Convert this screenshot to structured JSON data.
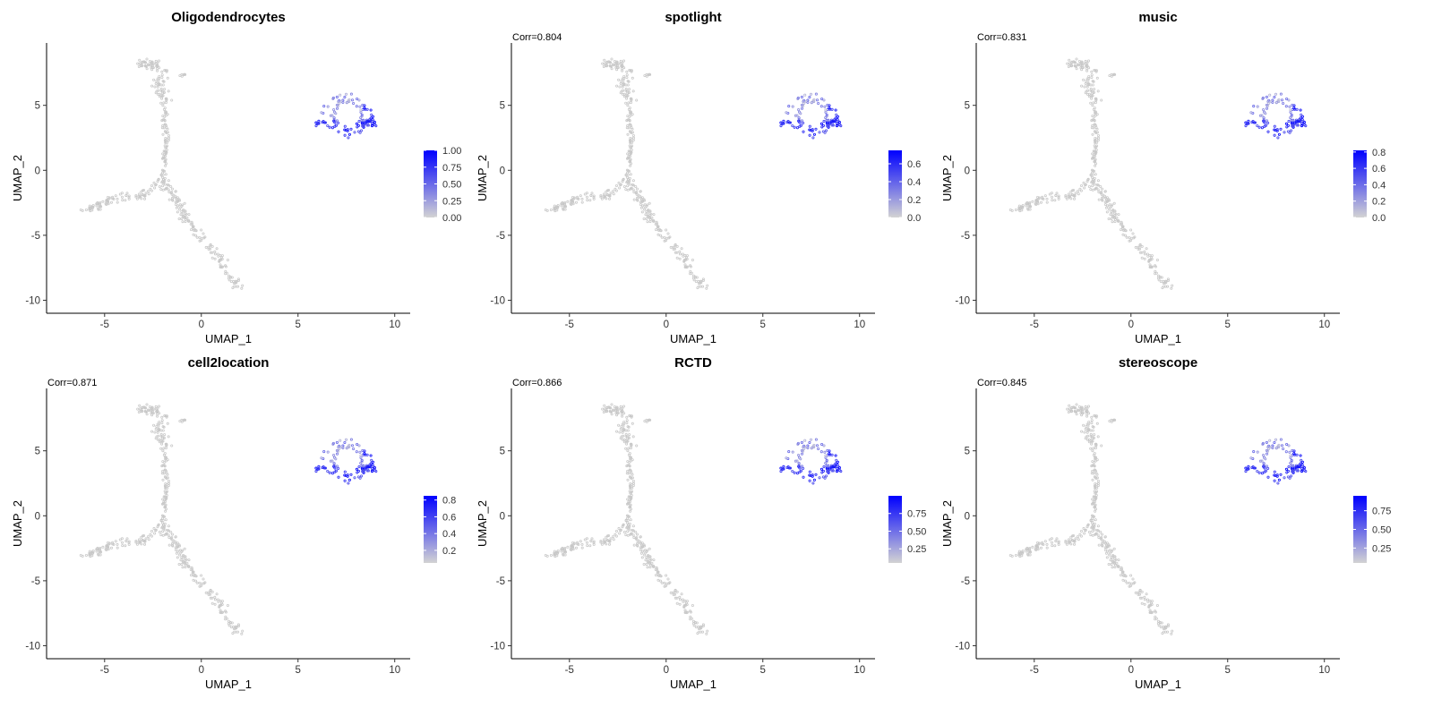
{
  "figure": {
    "layout": "2 rows x 3 columns of UMAP feature plots"
  },
  "chart_data": [
    {
      "type": "scatter",
      "title": "Oligodendrocytes",
      "annotation": "",
      "xlabel": "UMAP_1",
      "ylabel": "UMAP_2",
      "xlim": [
        -8,
        10.8
      ],
      "ylim": [
        -11,
        9.8
      ],
      "x_ticks": [
        "-5",
        "0",
        "5",
        "10"
      ],
      "y_ticks": [
        "-10",
        "-5",
        "0",
        "5"
      ],
      "x_tick_values": [
        -5,
        0,
        5,
        10
      ],
      "y_tick_values": [
        -10,
        -5,
        0,
        5
      ],
      "grid": false,
      "legend_position": "right",
      "color_low": "#d3d3d3",
      "color_high": "#0000ff",
      "legend_range": [
        0,
        1.0
      ],
      "legend_ticks": [
        "0.00",
        "0.25",
        "0.50",
        "0.75",
        "1.00"
      ],
      "legend_tick_values": [
        0,
        0.25,
        0.5,
        0.75,
        1.0
      ]
    },
    {
      "type": "scatter",
      "title": "spotlight",
      "annotation": "Corr=0.804",
      "xlabel": "UMAP_1",
      "ylabel": "UMAP_2",
      "xlim": [
        -8,
        10.8
      ],
      "ylim": [
        -11,
        9.8
      ],
      "x_ticks": [
        "-5",
        "0",
        "5",
        "10"
      ],
      "y_ticks": [
        "-10",
        "-5",
        "0",
        "5"
      ],
      "x_tick_values": [
        -5,
        0,
        5,
        10
      ],
      "y_tick_values": [
        -10,
        -5,
        0,
        5
      ],
      "grid": false,
      "legend_position": "right",
      "color_low": "#d3d3d3",
      "color_high": "#0000ff",
      "legend_range": [
        0,
        0.75
      ],
      "legend_ticks": [
        "0.0",
        "0.2",
        "0.4",
        "0.6"
      ],
      "legend_tick_values": [
        0,
        0.2,
        0.4,
        0.6
      ]
    },
    {
      "type": "scatter",
      "title": "music",
      "annotation": "Corr=0.831",
      "xlabel": "UMAP_1",
      "ylabel": "UMAP_2",
      "xlim": [
        -8,
        10.8
      ],
      "ylim": [
        -11,
        9.8
      ],
      "x_ticks": [
        "-5",
        "0",
        "5",
        "10"
      ],
      "y_ticks": [
        "-10",
        "-5",
        "0",
        "5"
      ],
      "x_tick_values": [
        -5,
        0,
        5,
        10
      ],
      "y_tick_values": [
        -10,
        -5,
        0,
        5
      ],
      "grid": false,
      "legend_position": "right",
      "color_low": "#d3d3d3",
      "color_high": "#0000ff",
      "legend_range": [
        0,
        0.82
      ],
      "legend_ticks": [
        "0.0",
        "0.2",
        "0.4",
        "0.6",
        "0.8"
      ],
      "legend_tick_values": [
        0,
        0.2,
        0.4,
        0.6,
        0.8
      ]
    },
    {
      "type": "scatter",
      "title": "cell2location",
      "annotation": "Corr=0.871",
      "xlabel": "UMAP_1",
      "ylabel": "UMAP_2",
      "xlim": [
        -8,
        10.8
      ],
      "ylim": [
        -11,
        9.8
      ],
      "x_ticks": [
        "-5",
        "0",
        "5",
        "10"
      ],
      "y_ticks": [
        "-10",
        "-5",
        "0",
        "5"
      ],
      "x_tick_values": [
        -5,
        0,
        5,
        10
      ],
      "y_tick_values": [
        -10,
        -5,
        0,
        5
      ],
      "grid": false,
      "legend_position": "right",
      "color_low": "#d3d3d3",
      "color_high": "#0000ff",
      "legend_range": [
        0.05,
        0.85
      ],
      "legend_ticks": [
        "0.2",
        "0.4",
        "0.6",
        "0.8"
      ],
      "legend_tick_values": [
        0.2,
        0.4,
        0.6,
        0.8
      ]
    },
    {
      "type": "scatter",
      "title": "RCTD",
      "annotation": "Corr=0.866",
      "xlabel": "UMAP_1",
      "ylabel": "UMAP_2",
      "xlim": [
        -8,
        10.8
      ],
      "ylim": [
        -11,
        9.8
      ],
      "x_ticks": [
        "-5",
        "0",
        "5",
        "10"
      ],
      "y_ticks": [
        "-10",
        "-5",
        "0",
        "5"
      ],
      "x_tick_values": [
        -5,
        0,
        5,
        10
      ],
      "y_tick_values": [
        -10,
        -5,
        0,
        5
      ],
      "grid": false,
      "legend_position": "right",
      "color_low": "#d3d3d3",
      "color_high": "#0000ff",
      "legend_range": [
        0.05,
        1.0
      ],
      "legend_ticks": [
        "0.25",
        "0.50",
        "0.75"
      ],
      "legend_tick_values": [
        0.25,
        0.5,
        0.75
      ]
    },
    {
      "type": "scatter",
      "title": "stereoscope",
      "annotation": "Corr=0.845",
      "xlabel": "UMAP_1",
      "ylabel": "UMAP_2",
      "xlim": [
        -8,
        10.8
      ],
      "ylim": [
        -11,
        9.8
      ],
      "x_ticks": [
        "-5",
        "0",
        "5",
        "10"
      ],
      "y_ticks": [
        "-10",
        "-5",
        "0",
        "5"
      ],
      "x_tick_values": [
        -5,
        0,
        5,
        10
      ],
      "y_tick_values": [
        -10,
        -5,
        0,
        5
      ],
      "grid": false,
      "legend_position": "right",
      "color_low": "#d3d3d3",
      "color_high": "#0000ff",
      "legend_range": [
        0.05,
        0.95
      ],
      "legend_ticks": [
        "0.25",
        "0.50",
        "0.75"
      ],
      "legend_tick_values": [
        0.25,
        0.5,
        0.75
      ]
    }
  ]
}
